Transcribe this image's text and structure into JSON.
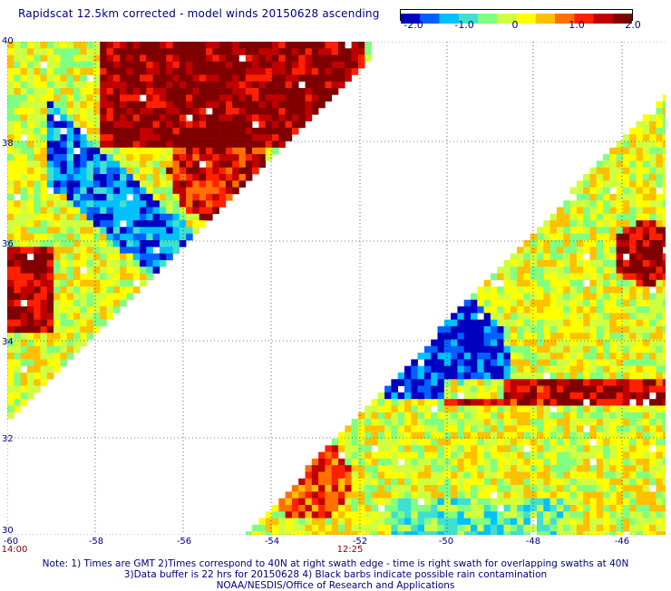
{
  "title": "Rapidscat 12.5km corrected - model winds 20150628 ascending",
  "colorbar": {
    "ticks": [
      "-2.0",
      "-1.0",
      "0",
      "1.0",
      "2.0"
    ],
    "colors": [
      "#0000c0",
      "#0060ff",
      "#00c0ff",
      "#40e0d0",
      "#80ff80",
      "#d0ff40",
      "#ffff00",
      "#ffc000",
      "#ff7000",
      "#ff2000",
      "#c00000",
      "#800000"
    ]
  },
  "map": {
    "y_labels": [
      "40",
      "38",
      "36",
      "34",
      "32",
      "30"
    ],
    "x_labels": [
      "-60",
      "-58",
      "-56",
      "-54",
      "-52",
      "-50",
      "-48",
      "-46"
    ],
    "time_labels": [
      "14:00",
      "12:25"
    ],
    "grid_color": "#000000"
  },
  "notes": [
    "Note: 1) Times are GMT 2)Times correspond to 40N at right swath edge - time is right swath for overlapping swaths at 40N",
    "3)Data buffer is 22 hrs for 20150628 4) Black barbs indicate possible rain contamination",
    "NOAA/NESDIS/Office of Research and Applications"
  ]
}
